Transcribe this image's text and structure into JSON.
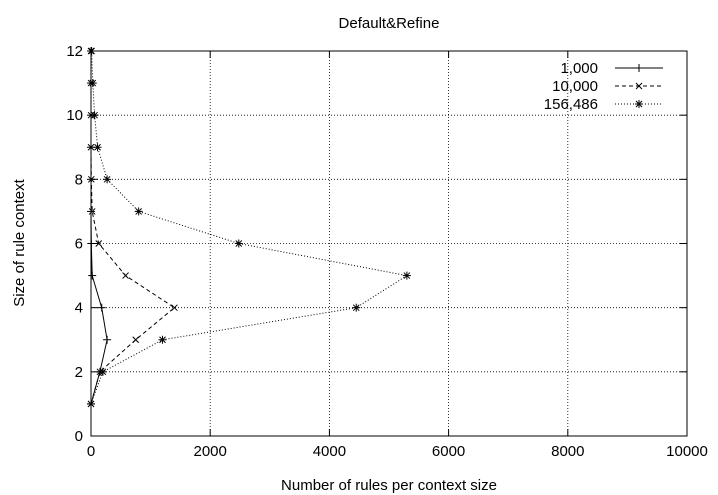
{
  "chart_data": {
    "type": "line",
    "title": "Default&Refine",
    "xlabel": "Number of rules per context size",
    "ylabel": "Size of rule context",
    "xlim": [
      0,
      10000
    ],
    "ylim": [
      0,
      12
    ],
    "x_ticks": [
      "0",
      "2000",
      "4000",
      "6000",
      "8000",
      "10000"
    ],
    "y_ticks": [
      "0",
      "2",
      "4",
      "6",
      "8",
      "10",
      "12"
    ],
    "grid": true,
    "legend_position": "top-right",
    "series": [
      {
        "name": "1,000",
        "line_style": "solid",
        "marker": "plus",
        "points": [
          {
            "x": 0,
            "y": 1
          },
          {
            "x": 150,
            "y": 2
          },
          {
            "x": 270,
            "y": 3
          },
          {
            "x": 180,
            "y": 4
          },
          {
            "x": 20,
            "y": 5
          },
          {
            "x": 5,
            "y": 6
          },
          {
            "x": 0,
            "y": 7
          },
          {
            "x": 0,
            "y": 8
          },
          {
            "x": 0,
            "y": 9
          },
          {
            "x": 0,
            "y": 10
          },
          {
            "x": 0,
            "y": 11
          },
          {
            "x": 0,
            "y": 12
          }
        ]
      },
      {
        "name": "10,000",
        "line_style": "dashed",
        "marker": "cross",
        "points": [
          {
            "x": 0,
            "y": 1
          },
          {
            "x": 150,
            "y": 2
          },
          {
            "x": 750,
            "y": 3
          },
          {
            "x": 1400,
            "y": 4
          },
          {
            "x": 580,
            "y": 5
          },
          {
            "x": 130,
            "y": 6
          },
          {
            "x": 20,
            "y": 7
          },
          {
            "x": 5,
            "y": 8
          },
          {
            "x": 0,
            "y": 9
          },
          {
            "x": 0,
            "y": 10
          },
          {
            "x": 0,
            "y": 11
          },
          {
            "x": 0,
            "y": 12
          }
        ]
      },
      {
        "name": "156,486",
        "line_style": "dotted",
        "marker": "star",
        "points": [
          {
            "x": 0,
            "y": 1
          },
          {
            "x": 200,
            "y": 2
          },
          {
            "x": 1200,
            "y": 3
          },
          {
            "x": 4450,
            "y": 4
          },
          {
            "x": 5300,
            "y": 5
          },
          {
            "x": 2480,
            "y": 6
          },
          {
            "x": 800,
            "y": 7
          },
          {
            "x": 270,
            "y": 8
          },
          {
            "x": 110,
            "y": 9
          },
          {
            "x": 60,
            "y": 10
          },
          {
            "x": 30,
            "y": 11
          },
          {
            "x": 10,
            "y": 12
          }
        ]
      }
    ]
  }
}
